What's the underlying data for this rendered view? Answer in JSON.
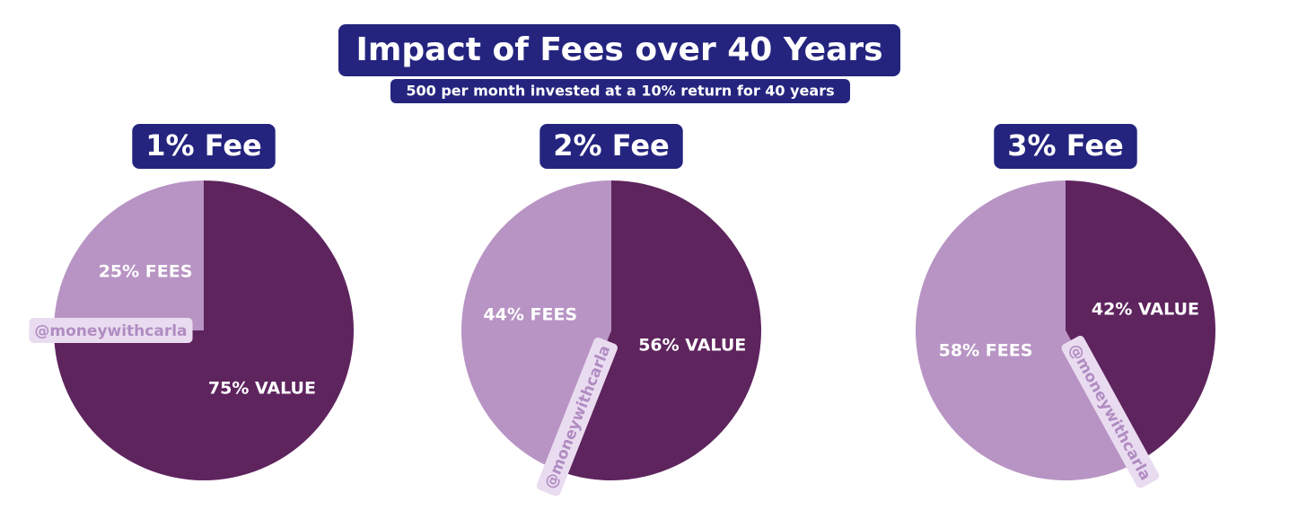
{
  "title": "Impact of Fees over 40 Years",
  "subtitle": "500 per month invested at a 10% return for 40 years",
  "chart_data": [
    {
      "type": "pie",
      "title": "1% Fee",
      "values": [
        25,
        75
      ],
      "value_labels": [
        "25% FEES",
        "75% VALUE"
      ],
      "colors": [
        "#b894c4",
        "#5e245e"
      ],
      "watermark": "@moneywithcarla"
    },
    {
      "type": "pie",
      "title": "2% Fee",
      "values": [
        44,
        56
      ],
      "value_labels": [
        "44% FEES",
        "56% VALUE"
      ],
      "colors": [
        "#b894c4",
        "#5e245e"
      ],
      "watermark": "@moneywithcarla"
    },
    {
      "type": "pie",
      "title": "3% Fee",
      "values": [
        58,
        42
      ],
      "value_labels": [
        "58% FEES",
        "42% VALUE"
      ],
      "colors": [
        "#b894c4",
        "#5e245e"
      ],
      "watermark": "@moneywithcarla"
    }
  ]
}
